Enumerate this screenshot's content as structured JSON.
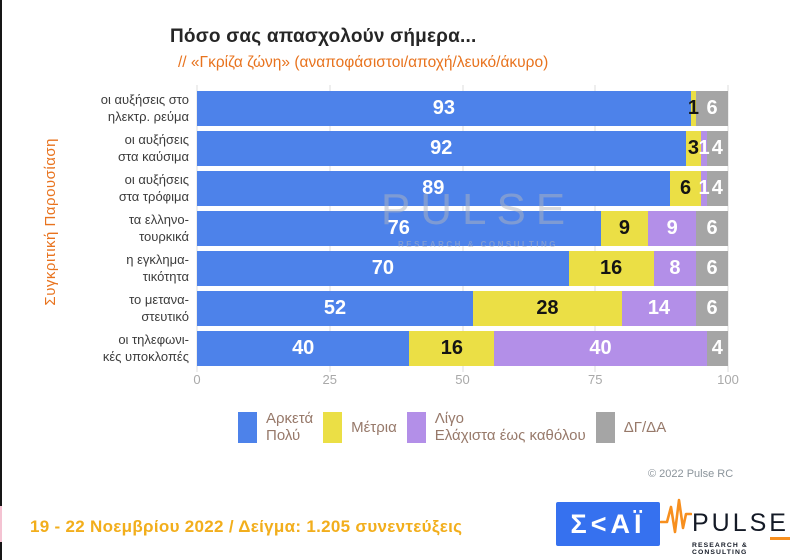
{
  "title": "Πόσο σας απασχολούν σήμερα...",
  "subtitle": "// «Γκρίζα ζώνη» (αναποφάσιστοι/αποχή/λευκό/άκυρο)",
  "y_axis_label": "Συγκριτική  Παρουσίαση",
  "chart_data": {
    "type": "bar",
    "orientation": "horizontal-stacked",
    "title": "Πόσο σας απασχολούν σήμερα...",
    "categories": [
      "οι αυξήσεις στο ηλεκτρ. ρεύμα",
      "οι αυξήσεις στα καύσιμα",
      "οι αυξήσεις στα τρόφιμα",
      "τα ελληνο-τουρκικά",
      "η εγκλημα-τικότητα",
      "το μετανα-στευτικό",
      "οι τηλεφωνι-κές υποκλοπές"
    ],
    "categories_lines": [
      [
        "οι αυξήσεις στο",
        "ηλεκτρ. ρεύμα"
      ],
      [
        "οι αυξήσεις",
        "στα καύσιμα"
      ],
      [
        "οι αυξήσεις",
        "στα τρόφιμα"
      ],
      [
        "τα ελληνο-",
        "τουρκικά"
      ],
      [
        "η εγκλημα-",
        "τικότητα"
      ],
      [
        "το μετανα-",
        "στευτικό"
      ],
      [
        "οι τηλεφωνι-",
        "κές υποκλοπές"
      ]
    ],
    "series": [
      {
        "key": "arketa-poly",
        "name": "Αρκετά Πολύ",
        "color": "#4d82ea",
        "label_color": "#ffffff",
        "values": [
          93,
          92,
          89,
          76,
          70,
          52,
          40
        ]
      },
      {
        "key": "metria",
        "name": "Μέτρια",
        "color": "#ebdf45",
        "label_color": "#141414",
        "values": [
          1,
          3,
          6,
          9,
          16,
          28,
          16
        ]
      },
      {
        "key": "ligo-elaxista",
        "name": "Λίγο Ελάχιστα έως καθόλου",
        "color": "#b38fe8",
        "label_color": "#ffffff",
        "values": [
          0,
          1,
          1,
          9,
          8,
          14,
          40
        ]
      },
      {
        "key": "dg-da",
        "name": "ΔΓ/ΔΑ",
        "color": "#a5a5a5",
        "label_color": "#ffffff",
        "values": [
          6,
          4,
          4,
          6,
          6,
          6,
          4
        ]
      }
    ],
    "xlim": [
      0,
      100
    ],
    "x_ticks": [
      0,
      25,
      50,
      75,
      100
    ],
    "grid": true,
    "legend_position": "bottom"
  },
  "legend": {
    "items": [
      {
        "color": "#4d82ea",
        "lines": [
          "Αρκετά",
          "Πολύ"
        ]
      },
      {
        "color": "#ebdf45",
        "lines": [
          "Μέτρια"
        ]
      },
      {
        "color": "#b38fe8",
        "lines": [
          "Λίγο",
          "Ελάχιστα έως καθόλου"
        ]
      },
      {
        "color": "#a5a5a5",
        "lines": [
          "ΔΓ/ΔΑ"
        ]
      }
    ]
  },
  "watermark": {
    "line1": "PULSE",
    "line2": "RESEARCH & CONSULTING"
  },
  "copyright": "© 2022 Pulse RC",
  "footer": {
    "text": "19 - 22  Νοεμβρίου  2022  /  Δείγμα:  1.205 συνεντεύξεις"
  },
  "logos": {
    "skai_text": "Σ<ΑΪ",
    "pulse_title": "PULSE",
    "pulse_subtitle": "RESEARCH & CONSULTING"
  },
  "colors": {
    "accent_orange": "#e8731e",
    "footer_yellow": "#f2ae1c",
    "skai_blue": "#3671ef",
    "pulse_orange": "#f78f1e"
  }
}
